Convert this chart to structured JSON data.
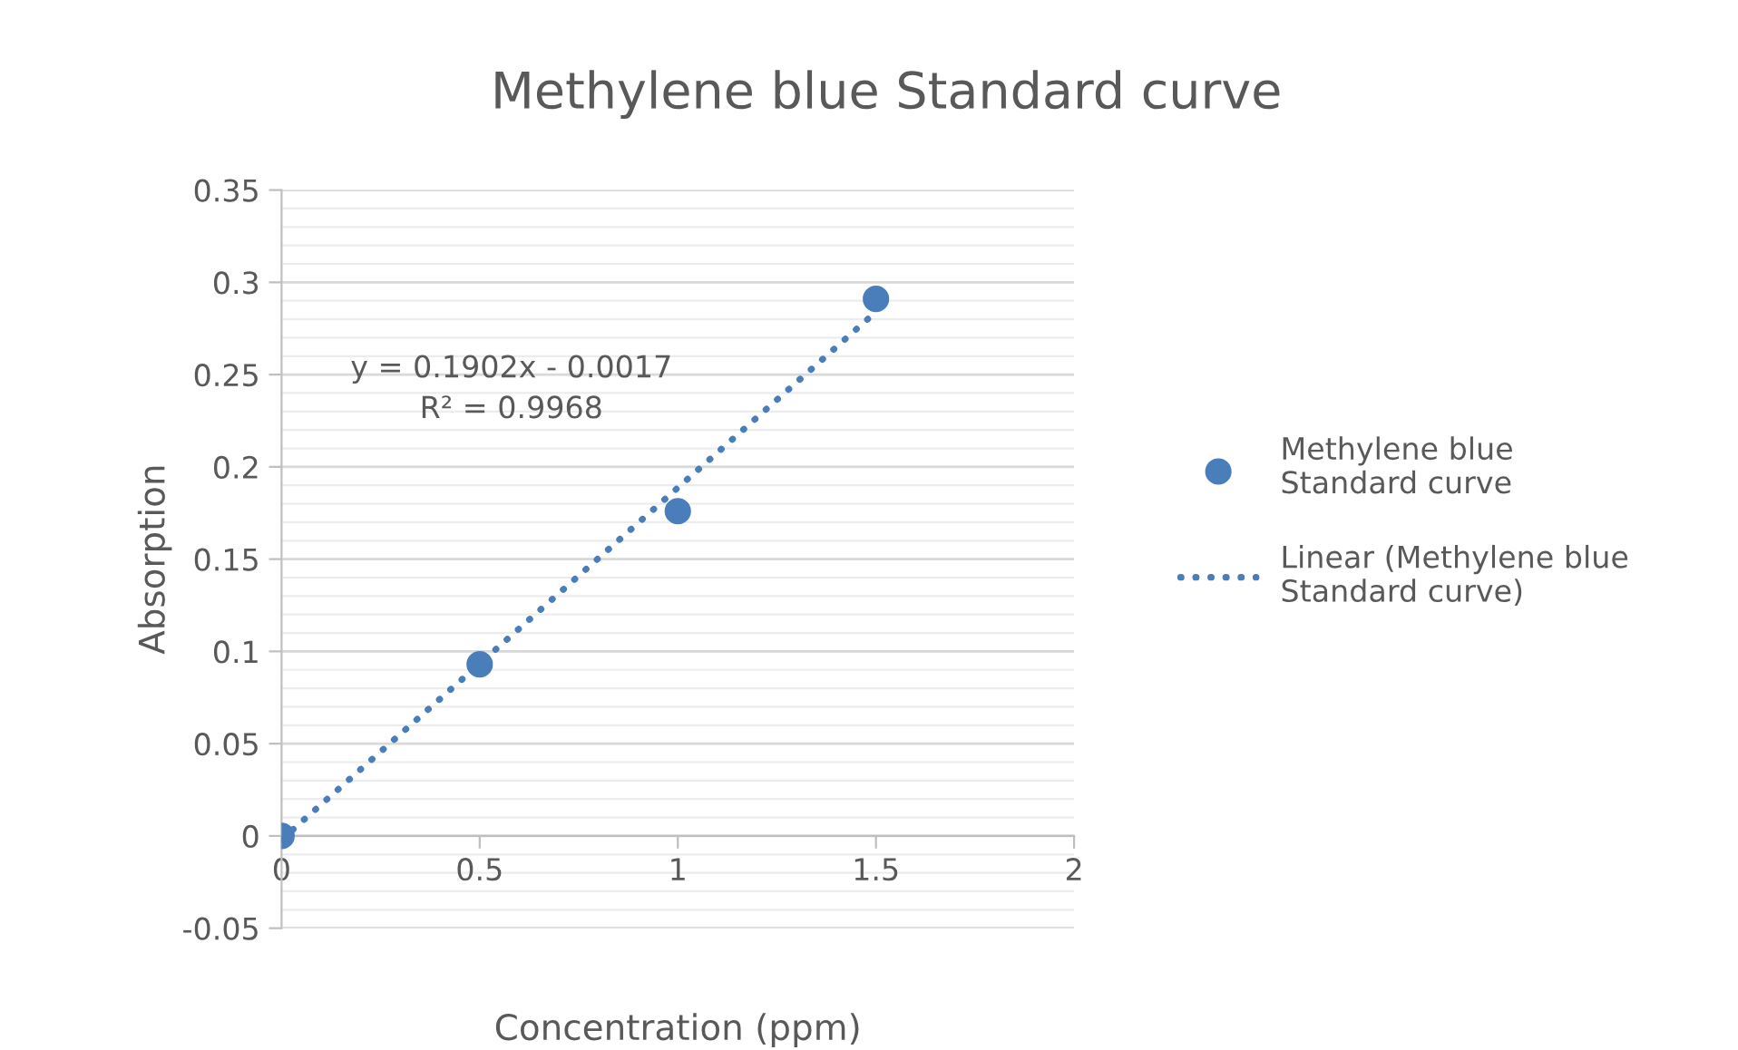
{
  "chart_data": {
    "type": "scatter",
    "title": "Methylene blue Standard curve",
    "xlabel": "Concentration (ppm)",
    "ylabel": "Absorption",
    "x": [
      0,
      0.5,
      1,
      1.5
    ],
    "series": [
      {
        "name": "Methylene blue\nStandard curve",
        "color": "#4a7ebb",
        "marker": "circle",
        "values": [
          0,
          0.093,
          0.176,
          0.291
        ]
      },
      {
        "name": "Linear (Methylene blue\nStandard curve)",
        "type": "line",
        "color": "#4a7ebb",
        "line_style": "dotted",
        "marker": "none",
        "x": [
          0,
          1.5
        ],
        "values": [
          -0.002,
          0.284
        ]
      }
    ],
    "xlim": [
      0,
      2
    ],
    "xticks": [
      0,
      0.5,
      1,
      1.5,
      2
    ],
    "ylim": [
      -0.05,
      0.35
    ],
    "yticks": [
      -0.05,
      0,
      0.05,
      0.1,
      0.15,
      0.2,
      0.25,
      0.3,
      0.35
    ],
    "grid": "y",
    "legend": "right",
    "annotations": [
      "y = 0.1902x - 0.0017\nR² = 0.9968"
    ]
  }
}
